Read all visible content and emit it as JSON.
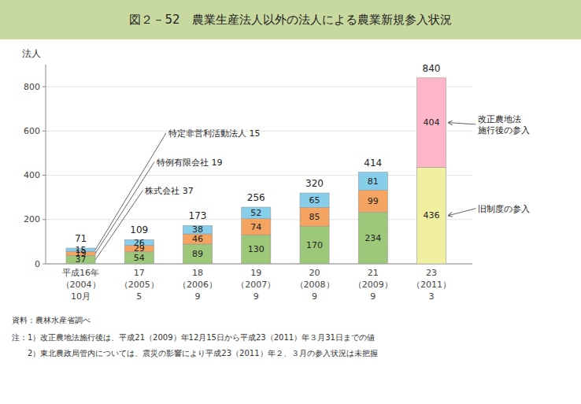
{
  "chart_data": {
    "type": "bar",
    "stacked": true,
    "title": "図２－52　農業生産法人以外の法人による農業新規参入状況",
    "y_label": "法人",
    "categories": [
      "平成16年\n（2004）\n10月",
      "17\n（2005）\n5",
      "18\n（2006）\n9",
      "19\n（2007）\n9",
      "20\n（2008）\n9",
      "21\n（2009）\n9",
      "23\n（2011）\n3"
    ],
    "series": [
      {
        "color": "#9dc87a",
        "values": [
          37,
          54,
          89,
          130,
          170,
          234,
          0
        ]
      },
      {
        "color": "#f4a460",
        "values": [
          19,
          29,
          46,
          74,
          85,
          99,
          0
        ]
      },
      {
        "color": "#87ceeb",
        "values": [
          15,
          26,
          38,
          52,
          65,
          81,
          0
        ]
      },
      {
        "color": "#f0f0a0",
        "values": [
          0,
          0,
          0,
          0,
          0,
          0,
          436
        ]
      },
      {
        "color": "#ffb6c8",
        "values": [
          0,
          0,
          0,
          0,
          0,
          0,
          404
        ]
      }
    ],
    "totals": [
      71,
      109,
      173,
      256,
      320,
      414,
      840
    ],
    "data_labels": true,
    "ylim": [
      0,
      900
    ],
    "yticks": [
      0,
      200,
      400,
      600,
      800
    ],
    "grid": true,
    "annotations": [
      {
        "text": "特定非営利活動法人 15"
      },
      {
        "text": "特例有限会社 19"
      },
      {
        "text": "株式会社 37"
      },
      {
        "text": "旧制度の参入"
      },
      {
        "text": "改正農地法\n施行後の参入"
      }
    ],
    "source": "資料：農林水産省調べ",
    "notes": [
      "注：1）改正農地法施行後は、平成21（2009）年12月15日から平成23（2011）年３月31日までの値",
      "　　2）東北農政局管内については、震災の影響により平成23（2011）年２、３月の参入状況は未把握"
    ]
  }
}
